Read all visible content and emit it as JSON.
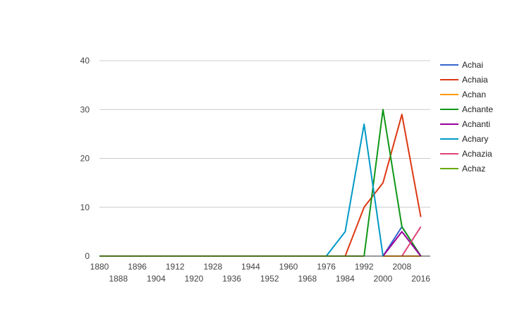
{
  "chart_data": {
    "type": "line",
    "title": "",
    "xlabel": "",
    "ylabel": "",
    "ylim": [
      0,
      40
    ],
    "yticks": [
      0,
      10,
      20,
      30,
      40
    ],
    "xlim": [
      1880,
      2020
    ],
    "xticks": [
      1880,
      1888,
      1896,
      1904,
      1912,
      1920,
      1928,
      1936,
      1944,
      1952,
      1960,
      1968,
      1976,
      1984,
      1992,
      2000,
      2008,
      2016
    ],
    "grid": true,
    "legend_position": "right",
    "series": [
      {
        "name": "Achai",
        "color": "#3366cc",
        "points": [
          [
            2000,
            0
          ],
          [
            2008,
            6
          ],
          [
            2016,
            0
          ]
        ]
      },
      {
        "name": "Achaia",
        "color": "#dc3912",
        "points": [
          [
            1984,
            0
          ],
          [
            1992,
            10
          ],
          [
            2000,
            15
          ],
          [
            2008,
            29
          ],
          [
            2016,
            8
          ]
        ]
      },
      {
        "name": "Achan",
        "color": "#ff9900",
        "points": [
          [
            2000,
            0
          ],
          [
            2008,
            0
          ],
          [
            2016,
            0
          ]
        ]
      },
      {
        "name": "Achante",
        "color": "#109618",
        "points": [
          [
            1992,
            0
          ],
          [
            2000,
            30
          ],
          [
            2008,
            6
          ],
          [
            2016,
            0
          ]
        ]
      },
      {
        "name": "Achanti",
        "color": "#990099",
        "points": [
          [
            2000,
            0
          ],
          [
            2008,
            5
          ],
          [
            2016,
            0
          ]
        ]
      },
      {
        "name": "Achary",
        "color": "#0099c6",
        "points": [
          [
            1976,
            0
          ],
          [
            1984,
            5
          ],
          [
            1992,
            27
          ],
          [
            2000,
            0
          ]
        ]
      },
      {
        "name": "Achazia",
        "color": "#dd4477",
        "points": [
          [
            2008,
            0
          ],
          [
            2016,
            6
          ]
        ]
      },
      {
        "name": "Achaz",
        "color": "#66aa00",
        "points": [
          [
            1880,
            0
          ],
          [
            1888,
            0
          ],
          [
            1896,
            0
          ],
          [
            1904,
            0
          ],
          [
            1912,
            0
          ],
          [
            1920,
            0
          ],
          [
            1928,
            0
          ],
          [
            1936,
            0
          ],
          [
            1944,
            0
          ],
          [
            1952,
            0
          ],
          [
            1960,
            0
          ],
          [
            1968,
            0
          ],
          [
            1976,
            0
          ],
          [
            1984,
            0
          ],
          [
            1992,
            0
          ]
        ]
      }
    ]
  }
}
